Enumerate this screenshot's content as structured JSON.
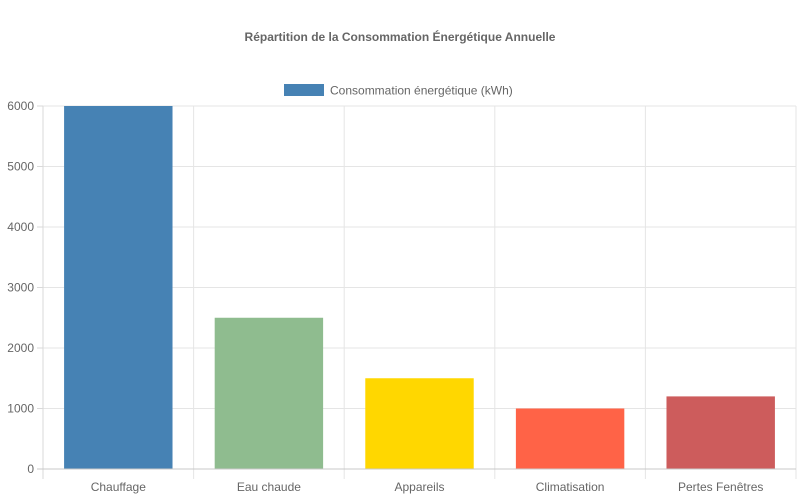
{
  "chart_data": {
    "type": "bar",
    "title": "Répartition de la Consommation Énergétique Annuelle",
    "xlabel": "",
    "ylabel": "",
    "categories": [
      "Chauffage",
      "Eau chaude",
      "Appareils",
      "Climatisation",
      "Pertes Fenêtres"
    ],
    "series": [
      {
        "name": "Consommation énergétique (kWh)",
        "values": [
          6000,
          2500,
          1500,
          1000,
          1200
        ],
        "colors": [
          "#4682b4",
          "#8fbc8f",
          "#ffd700",
          "#ff6347",
          "#cd5c5c"
        ],
        "legend_color": "#4682b4"
      }
    ],
    "ylim": [
      0,
      6000
    ],
    "yticks": [
      "0",
      "1000",
      "2000",
      "3000",
      "4000",
      "5000",
      "6000"
    ],
    "grid": true,
    "legend_position": "top"
  }
}
